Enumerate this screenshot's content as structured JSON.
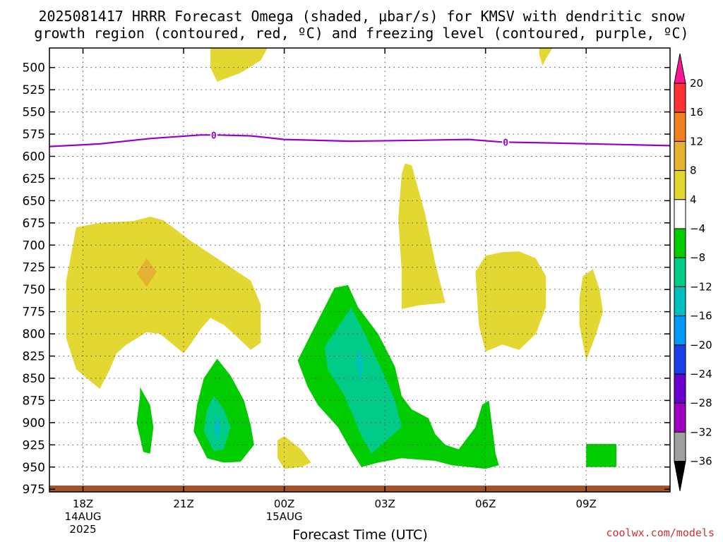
{
  "chart_data": {
    "type": "heatmap",
    "title_line1": "2025081417 HRRR Forecast Omega (shaded, μbar/s) for KMSV with dendritic snow",
    "title_line2": "growth region (contoured, red, ºC) and freezing level (contoured, purple, ºC)",
    "xlabel": "Forecast Time (UTC)",
    "watermark": "coolwx.com/models",
    "y_ticks": [
      500,
      525,
      550,
      575,
      600,
      625,
      650,
      675,
      700,
      725,
      750,
      775,
      800,
      825,
      850,
      875,
      900,
      925,
      950,
      975
    ],
    "x_ticks": [
      {
        "label": "18Z",
        "sub1": "14AUG",
        "sub2": "2025",
        "hour": 1
      },
      {
        "label": "21Z",
        "sub1": "",
        "sub2": "",
        "hour": 4
      },
      {
        "label": "00Z",
        "sub1": "15AUG",
        "sub2": "",
        "hour": 7
      },
      {
        "label": "03Z",
        "sub1": "",
        "sub2": "",
        "hour": 10
      },
      {
        "label": "06Z",
        "sub1": "",
        "sub2": "",
        "hour": 13
      },
      {
        "label": "09Z",
        "sub1": "",
        "sub2": "",
        "hour": 16
      }
    ],
    "x_range_hours": [
      0,
      18.5
    ],
    "y_range_hpa": [
      478,
      978
    ],
    "grid": true,
    "colorbar": {
      "labels": [
        "20",
        "16",
        "12",
        "8",
        "4",
        "−4",
        "−8",
        "−12",
        "−16",
        "−20",
        "−24",
        "−28",
        "−32",
        "−36"
      ],
      "colors": [
        "#ff1493",
        "#ff3333",
        "#f08020",
        "#e6b030",
        "#e3d832",
        "#ffffff",
        "#00cc00",
        "#00cc88",
        "#00bfbf",
        "#0099ff",
        "#1a3fe6",
        "#6a00cc",
        "#a000c0",
        "#a0a0a0",
        "#000000"
      ],
      "placement": "right"
    },
    "freezing_level": {
      "color": "#9900cc",
      "label": "0",
      "points": [
        [
          0,
          589
        ],
        [
          1.5,
          586
        ],
        [
          3,
          580
        ],
        [
          4.5,
          576
        ],
        [
          5,
          576
        ],
        [
          6,
          577
        ],
        [
          7,
          581
        ],
        [
          9,
          583
        ],
        [
          11,
          582
        ],
        [
          12.5,
          581
        ],
        [
          13.5,
          584
        ],
        [
          15,
          585
        ],
        [
          18.5,
          588
        ]
      ]
    },
    "surface_color": "#a0522d",
    "regions": [
      {
        "name": "omega-pos-4-8",
        "color": "#e3d832",
        "points": [
          [
            4.8,
            478
          ],
          [
            6.5,
            478
          ],
          [
            6.3,
            492
          ],
          [
            5.7,
            506
          ],
          [
            5.0,
            516
          ],
          [
            4.8,
            500
          ]
        ]
      },
      {
        "name": "omega-pos-4-8",
        "color": "#e3d832",
        "points": [
          [
            14.6,
            478
          ],
          [
            15.0,
            478
          ],
          [
            14.8,
            490
          ],
          [
            14.7,
            498
          ],
          [
            14.6,
            485
          ]
        ]
      },
      {
        "name": "omega-pos-4-8",
        "color": "#e3d832",
        "points": [
          [
            0.8,
            680
          ],
          [
            1.5,
            675
          ],
          [
            2.5,
            673
          ],
          [
            3,
            668
          ],
          [
            3.4,
            672
          ],
          [
            4.2,
            695
          ],
          [
            5.2,
            720
          ],
          [
            6,
            740
          ],
          [
            6.3,
            767
          ],
          [
            6.3,
            810
          ],
          [
            6.0,
            818
          ],
          [
            5.5,
            800
          ],
          [
            5.2,
            790
          ],
          [
            4.8,
            782
          ],
          [
            4.5,
            795
          ],
          [
            4.2,
            812
          ],
          [
            4.0,
            822
          ],
          [
            3.3,
            800
          ],
          [
            2.9,
            798
          ],
          [
            2.3,
            812
          ],
          [
            2.0,
            822
          ],
          [
            1.8,
            840
          ],
          [
            1.5,
            862
          ],
          [
            0.8,
            840
          ],
          [
            0.5,
            805
          ],
          [
            0.5,
            740
          ]
        ]
      },
      {
        "name": "omega-pos-8-12",
        "color": "#e6b030",
        "points": [
          [
            2.9,
            715
          ],
          [
            3.2,
            730
          ],
          [
            2.9,
            747
          ],
          [
            2.6,
            732
          ]
        ]
      },
      {
        "name": "omega-pos-4-8",
        "color": "#e3d832",
        "points": [
          [
            10.6,
            608
          ],
          [
            10.8,
            610
          ],
          [
            11.2,
            665
          ],
          [
            11.5,
            720
          ],
          [
            11.8,
            765
          ],
          [
            11.0,
            768
          ],
          [
            10.5,
            772
          ],
          [
            10.5,
            730
          ],
          [
            10.4,
            670
          ],
          [
            10.5,
            620
          ]
        ]
      },
      {
        "name": "omega-pos-4-8",
        "color": "#e3d832",
        "points": [
          [
            13.0,
            712
          ],
          [
            13.5,
            708
          ],
          [
            14.0,
            707
          ],
          [
            14.5,
            715
          ],
          [
            14.8,
            735
          ],
          [
            14.8,
            770
          ],
          [
            14.5,
            800
          ],
          [
            14.0,
            818
          ],
          [
            13.5,
            812
          ],
          [
            13.0,
            820
          ],
          [
            12.8,
            790
          ],
          [
            12.7,
            730
          ]
        ]
      },
      {
        "name": "omega-pos-4-8",
        "color": "#e3d832",
        "points": [
          [
            15.9,
            735
          ],
          [
            16.2,
            727
          ],
          [
            16.4,
            750
          ],
          [
            16.5,
            775
          ],
          [
            16.3,
            800
          ],
          [
            16.0,
            830
          ],
          [
            15.8,
            790
          ],
          [
            15.8,
            760
          ]
        ]
      },
      {
        "name": "omega-pos-4-8",
        "color": "#e3d832",
        "points": [
          [
            6.8,
            920
          ],
          [
            7.0,
            915
          ],
          [
            7.5,
            930
          ],
          [
            7.8,
            945
          ],
          [
            7.5,
            950
          ],
          [
            7.0,
            952
          ],
          [
            6.8,
            940
          ]
        ]
      },
      {
        "name": "omega-neg-4-8",
        "color": "#00cc00",
        "points": [
          [
            2.7,
            860
          ],
          [
            3.0,
            880
          ],
          [
            3.1,
            905
          ],
          [
            3.0,
            935
          ],
          [
            2.8,
            933
          ],
          [
            2.6,
            900
          ],
          [
            2.7,
            870
          ]
        ]
      },
      {
        "name": "omega-neg-4-8",
        "color": "#00cc00",
        "points": [
          [
            5.0,
            828
          ],
          [
            5.4,
            847
          ],
          [
            5.8,
            875
          ],
          [
            6.0,
            903
          ],
          [
            6.1,
            925
          ],
          [
            5.7,
            944
          ],
          [
            5.2,
            945
          ],
          [
            4.7,
            940
          ],
          [
            4.3,
            910
          ],
          [
            4.4,
            880
          ],
          [
            4.6,
            850
          ]
        ]
      },
      {
        "name": "omega-neg-8-12",
        "color": "#00cc88",
        "points": [
          [
            4.9,
            870
          ],
          [
            5.2,
            885
          ],
          [
            5.4,
            905
          ],
          [
            5.2,
            930
          ],
          [
            4.9,
            932
          ],
          [
            4.6,
            910
          ],
          [
            4.7,
            885
          ]
        ]
      },
      {
        "name": "omega-neg-12-16",
        "color": "#00bfbf",
        "points": [
          [
            5.0,
            890
          ],
          [
            5.1,
            905
          ],
          [
            5.0,
            920
          ],
          [
            4.9,
            905
          ]
        ]
      },
      {
        "name": "omega-neg-4-8",
        "color": "#00cc00",
        "points": [
          [
            8.5,
            748
          ],
          [
            8.9,
            745
          ],
          [
            9.2,
            770
          ],
          [
            9.8,
            800
          ],
          [
            10.3,
            837
          ],
          [
            10.5,
            870
          ],
          [
            10.8,
            885
          ],
          [
            11.3,
            895
          ],
          [
            11.5,
            913
          ],
          [
            11.8,
            925
          ],
          [
            12.2,
            930
          ],
          [
            12.7,
            905
          ],
          [
            12.9,
            880
          ],
          [
            13.1,
            875
          ],
          [
            13.2,
            905
          ],
          [
            13.3,
            935
          ],
          [
            13.4,
            948
          ],
          [
            13.0,
            952
          ],
          [
            12.0,
            948
          ],
          [
            11.5,
            943
          ],
          [
            10.5,
            940
          ],
          [
            9.8,
            945
          ],
          [
            9.3,
            950
          ],
          [
            9.0,
            932
          ],
          [
            8.6,
            905
          ],
          [
            8.0,
            880
          ],
          [
            7.7,
            860
          ],
          [
            7.4,
            830
          ],
          [
            7.8,
            800
          ]
        ]
      },
      {
        "name": "omega-neg-8-12",
        "color": "#00cc88",
        "points": [
          [
            9.0,
            770
          ],
          [
            9.4,
            800
          ],
          [
            9.9,
            840
          ],
          [
            10.3,
            875
          ],
          [
            10.5,
            905
          ],
          [
            10.2,
            915
          ],
          [
            9.6,
            935
          ],
          [
            9.3,
            915
          ],
          [
            8.8,
            870
          ],
          [
            8.3,
            840
          ],
          [
            8.2,
            815
          ]
        ]
      },
      {
        "name": "omega-neg-12-16",
        "color": "#00bfbf",
        "points": [
          [
            9.2,
            815
          ],
          [
            9.35,
            830
          ],
          [
            9.3,
            855
          ],
          [
            9.15,
            835
          ]
        ]
      },
      {
        "name": "omega-neg-4-8",
        "color": "#00cc00",
        "points": [
          [
            16.0,
            924
          ],
          [
            16.9,
            924
          ],
          [
            16.9,
            950
          ],
          [
            16.0,
            950
          ]
        ]
      }
    ]
  }
}
